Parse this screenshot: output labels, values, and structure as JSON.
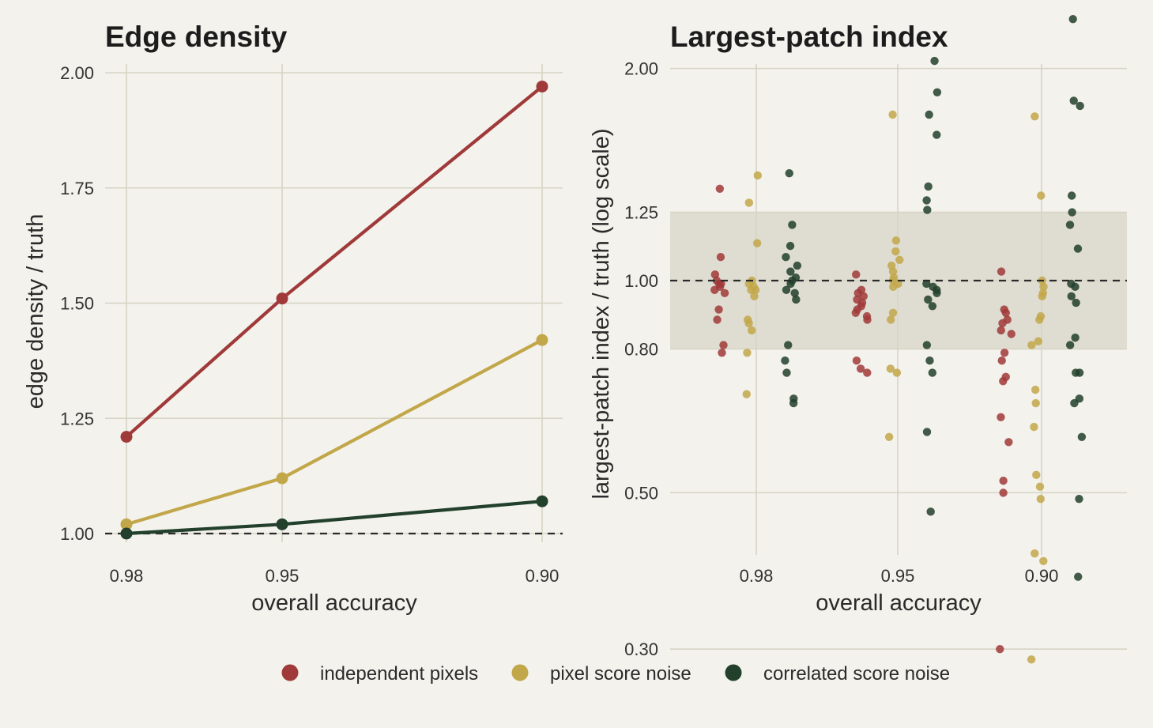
{
  "chart_data": [
    {
      "type": "line",
      "title": "Edge density",
      "xlabel": "overall accuracy",
      "ylabel": "edge density / truth",
      "categories": [
        "0.98",
        "0.95",
        "0.90"
      ],
      "ylim": [
        0.98,
        2.03
      ],
      "yticks": [
        "1.00",
        "1.25",
        "1.50",
        "1.75",
        "2.00"
      ],
      "reference_line": 1.0,
      "grid": true,
      "series": [
        {
          "name": "independent pixels",
          "color": "#a03a3a",
          "values": [
            1.21,
            1.51,
            1.97
          ]
        },
        {
          "name": "pixel score noise",
          "color": "#c2a74a",
          "values": [
            1.02,
            1.12,
            1.42
          ]
        },
        {
          "name": "correlated score noise",
          "color": "#22402c",
          "values": [
            1.0,
            1.02,
            1.07
          ]
        }
      ]
    },
    {
      "type": "scatter",
      "title": "Largest-patch index",
      "xlabel": "overall accuracy",
      "ylabel": "largest-patch index / truth (log scale)",
      "categories": [
        "0.98",
        "0.95",
        "0.90"
      ],
      "yscale": "log",
      "ylim": [
        0.275,
        2.6
      ],
      "yticks": [
        "0.30",
        "0.50",
        "0.80",
        "1.00",
        "1.25",
        "2.00"
      ],
      "reference_line": 1.0,
      "shaded_band": [
        0.8,
        1.25
      ],
      "grid": true,
      "series": [
        {
          "name": "independent pixels",
          "color": "#a03a3a",
          "groups": [
            [
              1.35,
              1.08,
              1.02,
              1.0,
              0.99,
              0.98,
              0.97,
              0.96,
              0.99,
              0.91,
              0.88,
              0.81,
              0.79
            ],
            [
              1.02,
              0.97,
              0.96,
              0.95,
              0.94,
              0.93,
              0.92,
              0.91,
              0.9,
              0.89,
              0.88,
              0.77,
              0.75,
              0.74
            ],
            [
              1.03,
              0.91,
              0.9,
              0.88,
              0.87,
              0.85,
              0.84,
              0.79,
              0.77,
              0.73,
              0.72,
              0.64,
              0.59,
              0.52,
              0.5,
              0.3
            ]
          ]
        },
        {
          "name": "pixel score noise",
          "color": "#c2a74a",
          "groups": [
            [
              1.41,
              1.29,
              1.13,
              1.0,
              0.99,
              0.98,
              0.97,
              0.97,
              0.95,
              0.88,
              0.87,
              0.85,
              0.79,
              0.69
            ],
            [
              1.72,
              1.14,
              1.1,
              1.07,
              1.05,
              1.03,
              1.01,
              1.0,
              0.99,
              0.98,
              0.9,
              0.88,
              0.75,
              0.74,
              0.6
            ],
            [
              1.71,
              1.32,
              1.0,
              0.98,
              0.96,
              0.95,
              0.89,
              0.88,
              0.82,
              0.81,
              0.7,
              0.67,
              0.62,
              0.53,
              0.51,
              0.49,
              0.41,
              0.4,
              0.29
            ]
          ]
        },
        {
          "name": "correlated score noise",
          "color": "#22402c",
          "groups": [
            [
              1.42,
              1.2,
              1.12,
              1.08,
              1.05,
              1.03,
              1.01,
              1.0,
              0.99,
              0.97,
              0.96,
              0.94,
              0.81,
              0.77,
              0.74,
              0.68,
              0.67
            ],
            [
              2.05,
              1.85,
              1.72,
              1.61,
              1.36,
              1.3,
              1.26,
              0.99,
              0.98,
              0.97,
              0.96,
              0.94,
              0.92,
              0.81,
              0.77,
              0.74,
              0.61,
              0.47
            ],
            [
              2.35,
              1.8,
              1.77,
              1.32,
              1.25,
              1.2,
              1.11,
              0.99,
              0.98,
              0.95,
              0.93,
              0.83,
              0.81,
              0.74,
              0.74,
              0.68,
              0.67,
              0.6,
              0.49,
              0.38
            ]
          ]
        }
      ]
    }
  ],
  "legend": [
    {
      "label": "independent pixels",
      "color": "#a03a3a"
    },
    {
      "label": "pixel score noise",
      "color": "#c2a74a"
    },
    {
      "label": "correlated score noise",
      "color": "#22402c"
    }
  ]
}
